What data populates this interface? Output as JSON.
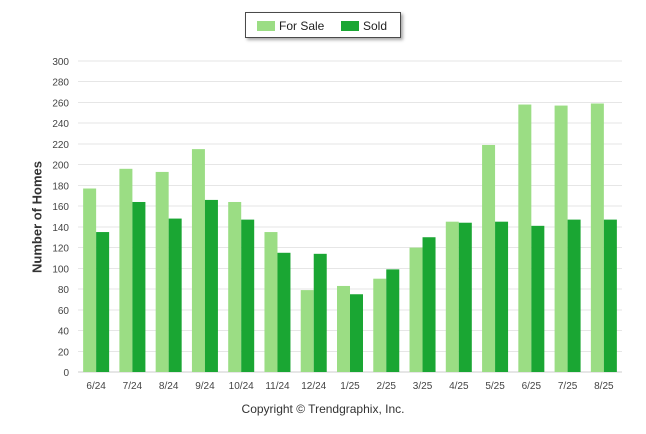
{
  "chart_data": {
    "type": "bar",
    "categories": [
      "6/24",
      "7/24",
      "8/24",
      "9/24",
      "10/24",
      "11/24",
      "12/24",
      "1/25",
      "2/25",
      "3/25",
      "4/25",
      "5/25",
      "6/25",
      "7/25",
      "8/25"
    ],
    "series": [
      {
        "name": "For Sale",
        "color": "#9bdd84",
        "values": [
          177,
          196,
          193,
          215,
          164,
          135,
          79,
          83,
          90,
          120,
          145,
          219,
          258,
          257,
          259
        ]
      },
      {
        "name": "Sold",
        "color": "#1aa633",
        "values": [
          135,
          164,
          148,
          166,
          147,
          115,
          114,
          75,
          99,
          130,
          144,
          145,
          141,
          147,
          147
        ]
      }
    ],
    "ylabel": "Number of Homes",
    "xlabel": "",
    "ylim": [
      0,
      300
    ],
    "yticks": [
      0,
      20,
      40,
      60,
      80,
      100,
      120,
      140,
      160,
      180,
      200,
      220,
      240,
      260,
      280,
      300
    ],
    "grid": true,
    "legend": "top-center"
  },
  "footer": {
    "copyright": "Copyright © Trendgraphix, Inc."
  }
}
